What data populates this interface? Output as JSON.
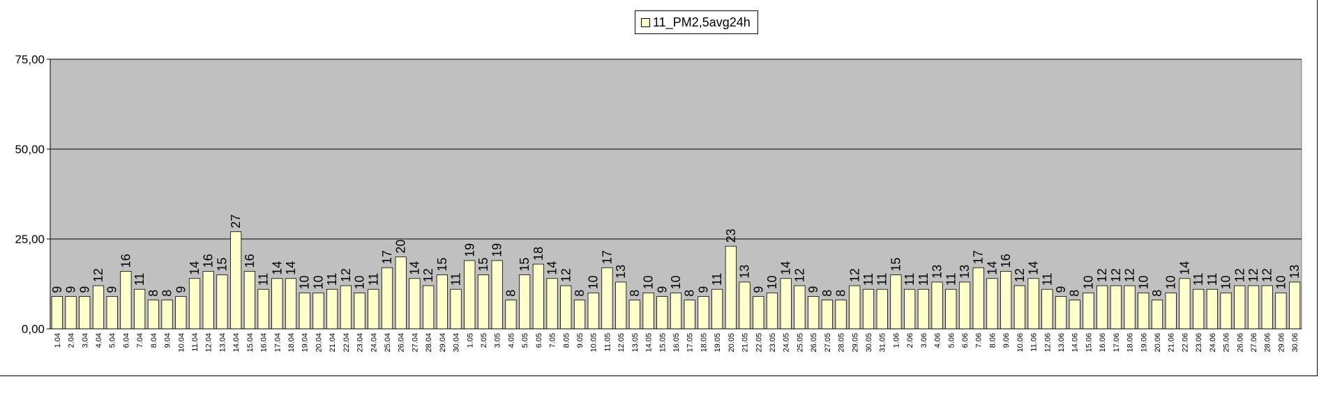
{
  "chart_data": {
    "type": "bar",
    "legend": {
      "position": "top-center",
      "entries": [
        "11_PM2,5avg24h"
      ]
    },
    "series": [
      {
        "name": "11_PM2,5avg24h",
        "color": "#ffffcc",
        "values": [
          9,
          9,
          9,
          12,
          9,
          16,
          11,
          8,
          8,
          9,
          14,
          16,
          15,
          27,
          16,
          11,
          14,
          14,
          10,
          10,
          11,
          12,
          10,
          11,
          17,
          20,
          14,
          12,
          15,
          11,
          19,
          15,
          19,
          8,
          15,
          18,
          14,
          12,
          8,
          10,
          17,
          13,
          8,
          10,
          9,
          10,
          8,
          9,
          11,
          23,
          13,
          9,
          10,
          14,
          12,
          9,
          8,
          8,
          12,
          11,
          11,
          15,
          11,
          11,
          13,
          11,
          13,
          17,
          14,
          16,
          12,
          14,
          11,
          9,
          8,
          10,
          12,
          12,
          12,
          10,
          8,
          10,
          14,
          11,
          11,
          10,
          12,
          12,
          12,
          10,
          13
        ]
      }
    ],
    "categories": [
      "1.04",
      "2.04",
      "3.04",
      "4.04",
      "5.04",
      "6.04",
      "7.04",
      "8.04",
      "9.04",
      "10.04",
      "11.04",
      "12.04",
      "13.04",
      "14.04",
      "15.04",
      "16.04",
      "17.04",
      "18.04",
      "19.04",
      "20.04",
      "21.04",
      "22.04",
      "23.04",
      "24.04",
      "25.04",
      "26.04",
      "27.04",
      "28.04",
      "29.04",
      "30.04",
      "1.05",
      "2.05",
      "3.05",
      "4.05",
      "5.05",
      "6.05",
      "7.05",
      "8.05",
      "9.05",
      "10.05",
      "11.05",
      "12.05",
      "13.05",
      "14.05",
      "15.05",
      "16.05",
      "17.05",
      "18.05",
      "19.05",
      "20.05",
      "21.05",
      "22.05",
      "23.05",
      "24.05",
      "25.05",
      "26.05",
      "27.05",
      "28.05",
      "29.05",
      "30.05",
      "31.05",
      "1.06",
      "2.06",
      "3.06",
      "4.06",
      "5.06",
      "6.06",
      "7.06",
      "8.06",
      "9.06",
      "10.06",
      "11.06",
      "12.06",
      "13.06",
      "14.06",
      "15.06",
      "16.06",
      "17.06",
      "18.06",
      "19.06",
      "20.06",
      "21.06",
      "22.06",
      "23.06",
      "24.06",
      "25.06",
      "26.06",
      "27.06",
      "28.06",
      "29.06",
      "30.06"
    ],
    "yticks": [
      "0,00",
      "25,00",
      "50,00",
      "75,00"
    ],
    "ytick_values": [
      0,
      25,
      50,
      75
    ],
    "ylim": [
      0,
      75
    ],
    "plot_background": "#c0c0c0",
    "grid": true
  }
}
